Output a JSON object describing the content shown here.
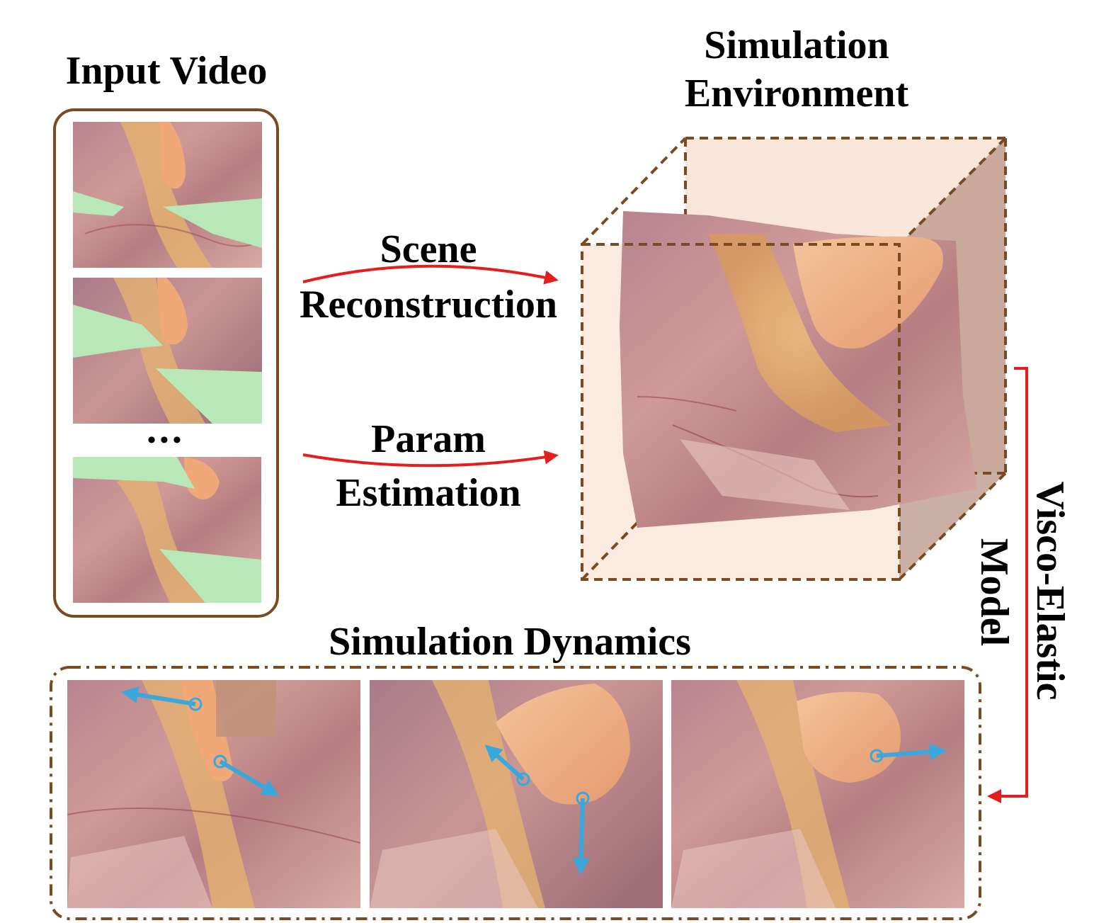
{
  "input_video": {
    "title": "Input Video",
    "ellipsis": "•••"
  },
  "simulation_environment": {
    "title_line1": "Simulation",
    "title_line2": "Environment"
  },
  "arrows": {
    "scene_line1": "Scene",
    "scene_line2": "Reconstruction",
    "param_line1": "Param",
    "param_line2": "Estimation",
    "model_line1": "Visco-Elastic",
    "model_line2": "Model"
  },
  "simulation_dynamics": {
    "title": "Simulation Dynamics"
  },
  "colors": {
    "frame_brown": "#7a4a22",
    "arrow_red": "#e41e1e",
    "force_blue": "#3aa8dc",
    "tool_green": "#b9e8b8",
    "tissue_pink": "#c98e8c",
    "fat_yellow": "#e3ae66"
  }
}
